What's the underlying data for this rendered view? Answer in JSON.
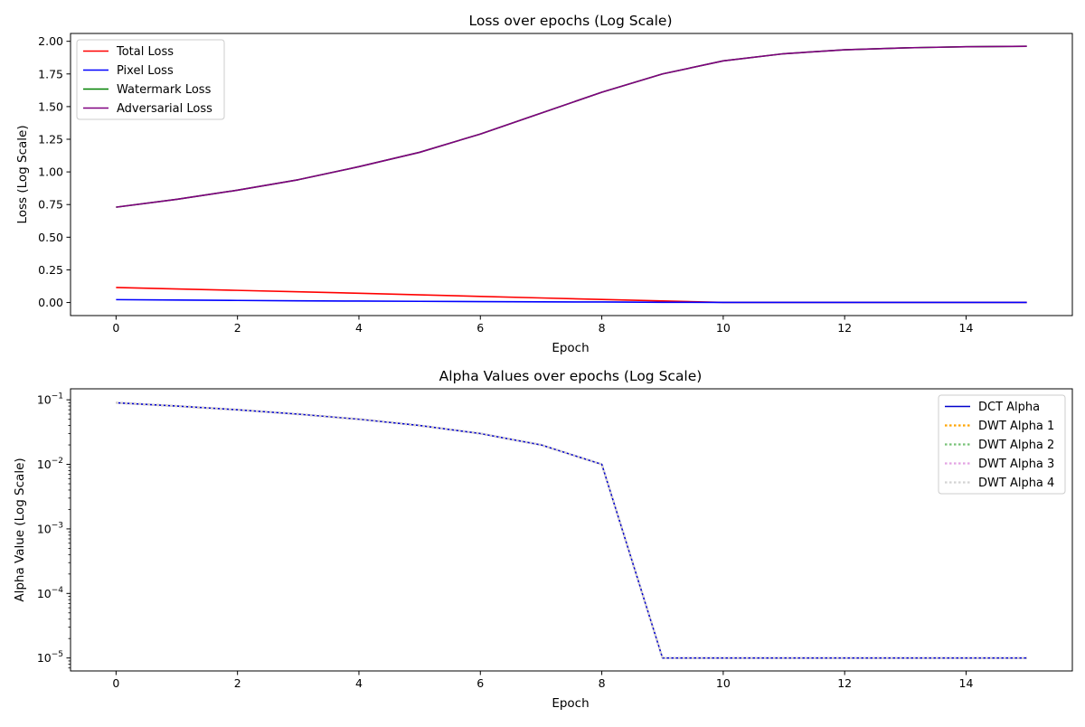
{
  "chart_data": [
    {
      "type": "line",
      "title": "Loss over epochs (Log Scale)",
      "xlabel": "Epoch",
      "ylabel": "Loss (Log Scale)",
      "xlim": [
        -0.75,
        15.75
      ],
      "ylim": [
        -0.1,
        2.06
      ],
      "yscale": "linear",
      "x_ticks": [
        0,
        2,
        4,
        6,
        8,
        10,
        12,
        14
      ],
      "y_ticks": [
        0.0,
        0.25,
        0.5,
        0.75,
        1.0,
        1.25,
        1.5,
        1.75,
        2.0
      ],
      "y_tick_labels": [
        "0.00",
        "0.25",
        "0.50",
        "0.75",
        "1.00",
        "1.25",
        "1.50",
        "1.75",
        "2.00"
      ],
      "grid": false,
      "legend_position": "upper-left",
      "x": [
        0,
        1,
        2,
        3,
        4,
        5,
        6,
        7,
        8,
        9,
        10,
        11,
        12,
        13,
        14,
        15
      ],
      "series": [
        {
          "name": "Total Loss",
          "color": "#ff0000",
          "style": "solid",
          "values": [
            0.115,
            0.104,
            0.093,
            0.082,
            0.071,
            0.059,
            0.047,
            0.035,
            0.023,
            0.012,
            0.001,
            0.001,
            0.001,
            0.001,
            0.001,
            0.001
          ]
        },
        {
          "name": "Pixel Loss",
          "color": "#0000ff",
          "style": "solid",
          "values": [
            0.022,
            0.019,
            0.016,
            0.013,
            0.011,
            0.009,
            0.007,
            0.005,
            0.004,
            0.002,
            0.001,
            0.001,
            0.001,
            0.001,
            0.001,
            0.001
          ]
        },
        {
          "name": "Watermark Loss",
          "color": "#008000",
          "style": "solid",
          "values": [
            0.73,
            0.79,
            0.86,
            0.94,
            1.04,
            1.15,
            1.29,
            1.45,
            1.61,
            1.75,
            1.85,
            1.905,
            1.935,
            1.95,
            1.958,
            1.962
          ]
        },
        {
          "name": "Adversarial Loss",
          "color": "#800080",
          "style": "solid",
          "values": [
            0.73,
            0.79,
            0.86,
            0.94,
            1.04,
            1.15,
            1.29,
            1.45,
            1.61,
            1.75,
            1.85,
            1.905,
            1.935,
            1.95,
            1.958,
            1.962
          ]
        }
      ]
    },
    {
      "type": "line",
      "title": "Alpha Values over epochs (Log Scale)",
      "xlabel": "Epoch",
      "ylabel": "Alpha Value (Log Scale)",
      "xlim": [
        -0.75,
        15.75
      ],
      "ylim": [
        6.3e-06,
        0.148
      ],
      "yscale": "log",
      "x_ticks": [
        0,
        2,
        4,
        6,
        8,
        10,
        12,
        14
      ],
      "y_ticks": [
        1e-05,
        0.0001,
        0.001,
        0.01,
        0.1
      ],
      "y_tick_labels": [
        {
          "base": "10",
          "exp": "−5"
        },
        {
          "base": "10",
          "exp": "−4"
        },
        {
          "base": "10",
          "exp": "−3"
        },
        {
          "base": "10",
          "exp": "−2"
        },
        {
          "base": "10",
          "exp": "−1"
        }
      ],
      "grid": false,
      "legend_position": "upper-right",
      "x": [
        0,
        1,
        2,
        3,
        4,
        5,
        6,
        7,
        8,
        9,
        10,
        11,
        12,
        13,
        14,
        15
      ],
      "series": [
        {
          "name": "DCT Alpha",
          "color": "#0000cc",
          "style": "solid",
          "values": [
            0.09,
            0.08,
            0.07,
            0.06,
            0.05,
            0.04,
            0.03,
            0.02,
            0.01,
            1e-05,
            1e-05,
            1e-05,
            1e-05,
            1e-05,
            1e-05,
            1e-05
          ]
        },
        {
          "name": "DWT Alpha 1",
          "color": "#ffa500",
          "style": "dotted",
          "values": [
            0.09,
            0.08,
            0.07,
            0.06,
            0.05,
            0.04,
            0.03,
            0.02,
            0.01,
            1e-05,
            1e-05,
            1e-05,
            1e-05,
            1e-05,
            1e-05,
            1e-05
          ]
        },
        {
          "name": "DWT Alpha 2",
          "color": "#77c277",
          "style": "dotted",
          "values": [
            0.09,
            0.08,
            0.07,
            0.06,
            0.05,
            0.04,
            0.03,
            0.02,
            0.01,
            1e-05,
            1e-05,
            1e-05,
            1e-05,
            1e-05,
            1e-05,
            1e-05
          ]
        },
        {
          "name": "DWT Alpha 3",
          "color": "#e3a3e3",
          "style": "dotted",
          "values": [
            0.09,
            0.08,
            0.07,
            0.06,
            0.05,
            0.04,
            0.03,
            0.02,
            0.01,
            1e-05,
            1e-05,
            1e-05,
            1e-05,
            1e-05,
            1e-05,
            1e-05
          ]
        },
        {
          "name": "DWT Alpha 4",
          "color": "#d3d3d3",
          "style": "dotted",
          "values": [
            0.09,
            0.08,
            0.07,
            0.06,
            0.05,
            0.04,
            0.03,
            0.02,
            0.01,
            1e-05,
            1e-05,
            1e-05,
            1e-05,
            1e-05,
            1e-05,
            1e-05
          ]
        }
      ]
    }
  ]
}
